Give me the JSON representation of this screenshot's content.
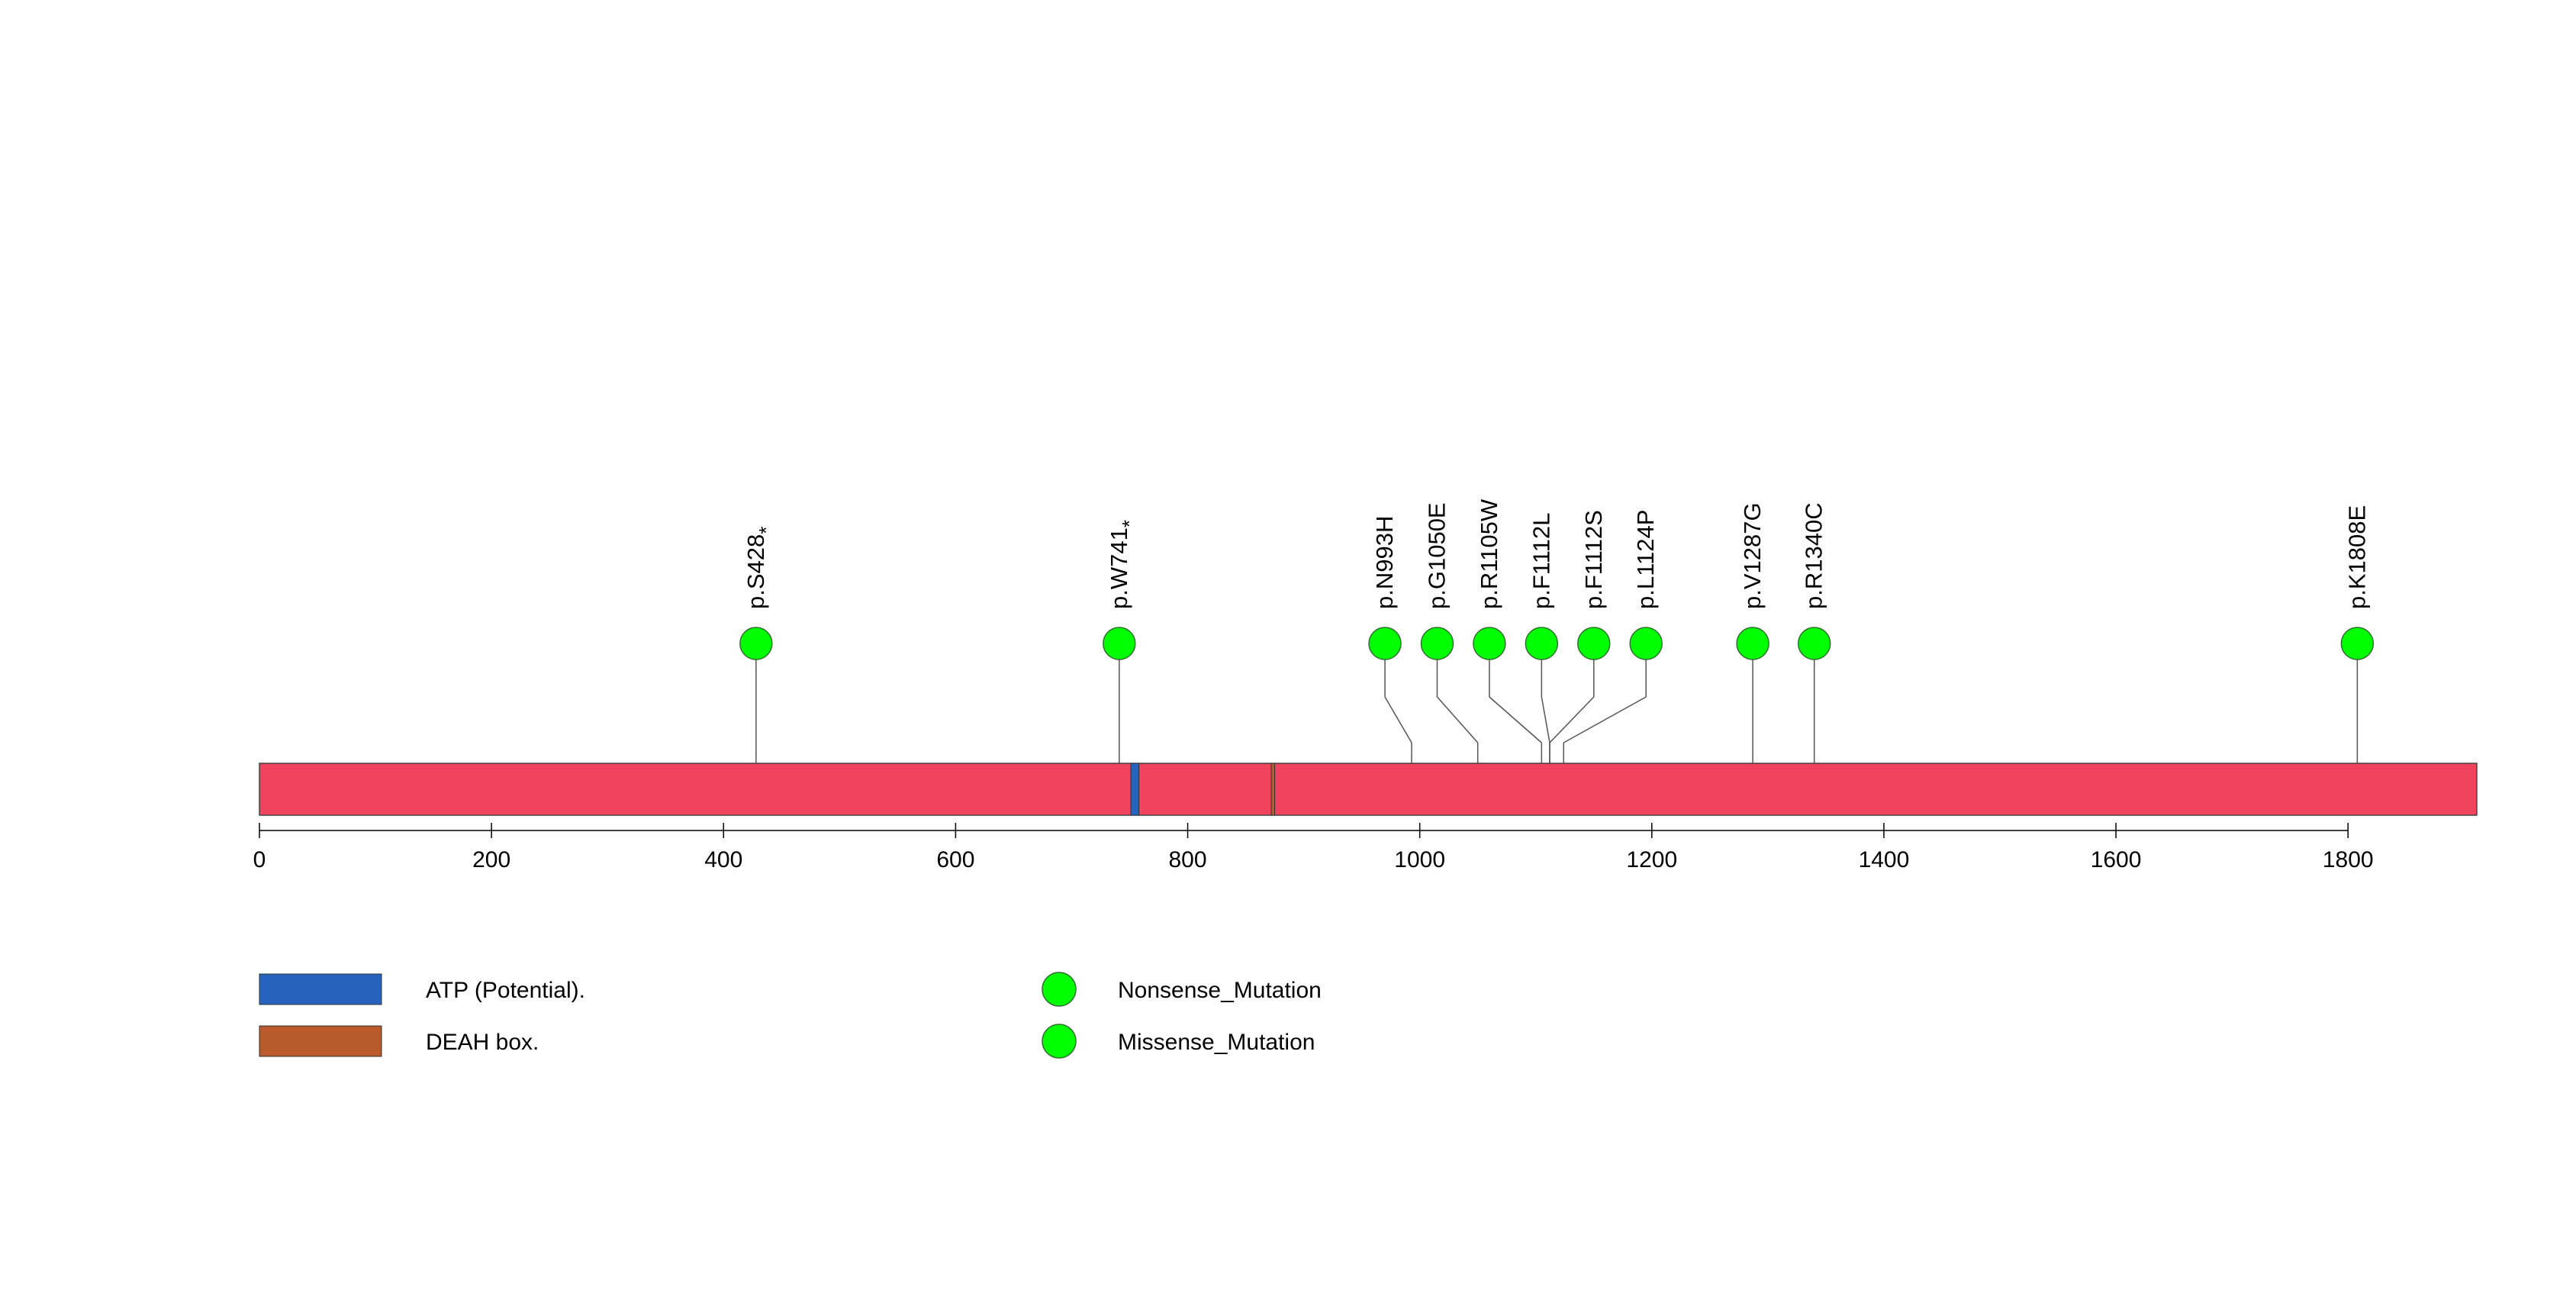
{
  "chart_data": {
    "type": "lollipop",
    "protein_length": 1911,
    "axis": {
      "xlim": [
        0,
        1911
      ],
      "ticks": [
        0,
        200,
        400,
        600,
        800,
        1000,
        1200,
        1400,
        1600,
        1800
      ],
      "tick_labels": [
        "0",
        "200",
        "400",
        "600",
        "800",
        "1000",
        "1200",
        "1400",
        "1600",
        "1800"
      ]
    },
    "domains": [
      {
        "name": "ATP (Potential).",
        "start": 751,
        "end": 758
      },
      {
        "name": "DEAH box.",
        "start": 872,
        "end": 875
      }
    ],
    "mutations": [
      {
        "label": "p.S428*",
        "display": "p.S428",
        "star": true,
        "position": 428,
        "display_position": 428,
        "type": "Nonsense_Mutation"
      },
      {
        "label": "p.W741*",
        "display": "p.W741",
        "star": true,
        "position": 741,
        "display_position": 741,
        "type": "Nonsense_Mutation"
      },
      {
        "label": "p.N993H",
        "display": "p.N993H",
        "star": false,
        "position": 993,
        "display_position": 970,
        "type": "Missense_Mutation"
      },
      {
        "label": "p.G1050E",
        "display": "p.G1050E",
        "star": false,
        "position": 1050,
        "display_position": 1015,
        "type": "Missense_Mutation"
      },
      {
        "label": "p.R1105W",
        "display": "p.R1105W",
        "star": false,
        "position": 1105,
        "display_position": 1060,
        "type": "Missense_Mutation"
      },
      {
        "label": "p.F1112L",
        "display": "p.F1112L",
        "star": false,
        "position": 1112,
        "display_position": 1105,
        "type": "Missense_Mutation"
      },
      {
        "label": "p.F1112S",
        "display": "p.F1112S",
        "star": false,
        "position": 1112,
        "display_position": 1150,
        "type": "Missense_Mutation"
      },
      {
        "label": "p.L1124P",
        "display": "p.L1124P",
        "star": false,
        "position": 1124,
        "display_position": 1195,
        "type": "Missense_Mutation"
      },
      {
        "label": "p.V1287G",
        "display": "p.V1287G",
        "star": false,
        "position": 1287,
        "display_position": 1287,
        "type": "Missense_Mutation"
      },
      {
        "label": "p.R1340C",
        "display": "p.R1340C",
        "star": false,
        "position": 1340,
        "display_position": 1340,
        "type": "Missense_Mutation"
      },
      {
        "label": "p.K1808E",
        "display": "p.K1808E",
        "star": false,
        "position": 1808,
        "display_position": 1808,
        "type": "Missense_Mutation"
      }
    ],
    "legend": {
      "domains": [
        {
          "label": "ATP (Potential).",
          "color": "#2563bf"
        },
        {
          "label": "DEAH box.",
          "color": "#b85a2b"
        }
      ],
      "mutation_types": [
        {
          "label": "Nonsense_Mutation",
          "color": "#00ff00"
        },
        {
          "label": "Missense_Mutation",
          "color": "#00ff00"
        }
      ]
    },
    "colors": {
      "protein": "#f0445e",
      "atp": "#2563bf",
      "deah": "#b85a2b",
      "mutation": "#00ff00",
      "line": "#555555"
    }
  }
}
